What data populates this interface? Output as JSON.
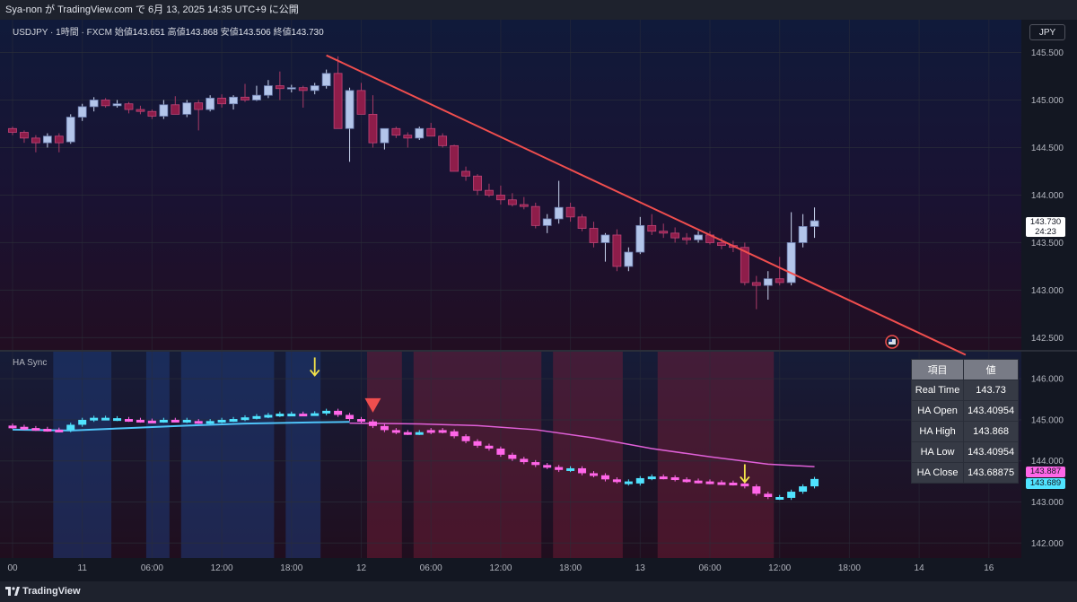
{
  "header": {
    "publisher_line": "Sya-non が TradingView.com で 6月 13, 2025 14:35 UTC+9 に公開"
  },
  "footer": {
    "brand": "TradingView"
  },
  "symbol": {
    "name": "USDJPY · 1時間 · FXCM",
    "open_label": "始値",
    "open": "143.651",
    "high_label": "高値",
    "high": "143.868",
    "low_label": "安値",
    "low": "143.506",
    "close_label": "終値",
    "close": "143.730"
  },
  "currency_button": "JPY",
  "last_price": {
    "price": "143.730",
    "countdown": "24:23"
  },
  "indicator": {
    "title": "HA Sync",
    "tag_upper": "143.887",
    "tag_lower": "143.689",
    "tag_upper_color": "#ff66e8",
    "tag_lower_color": "#50e3ff"
  },
  "table": {
    "headers": [
      "項目",
      "値"
    ],
    "rows": [
      [
        "Real Time",
        "143.73"
      ],
      [
        "HA Open",
        "143.40954"
      ],
      [
        "HA High",
        "143.868"
      ],
      [
        "HA Low",
        "143.40954"
      ],
      [
        "HA Close",
        "143.68875"
      ]
    ]
  },
  "colors": {
    "bull_body": "#b3c5ea",
    "bear_body": "#8e1d4a",
    "trendline": "#f04e4e",
    "ha_bull": "#50e3ff",
    "ha_bear": "#ff66e8",
    "ema_cyan": "#4fc3f7",
    "ema_pink": "#e060d8",
    "bg_blue": "#1f3a78",
    "bg_red": "#7a1f3a",
    "arrow_yellow": "#f3e34a",
    "marker_red": "#f04e4e"
  },
  "chart_data": [
    {
      "type": "candlestick",
      "title": "USDJPY · 1時間 · FXCM",
      "ylim": [
        142.4,
        145.75
      ],
      "y_ticks": [
        142.5,
        143.0,
        143.5,
        144.0,
        144.5,
        145.0,
        145.5
      ],
      "y_tick_labels": [
        "142.500",
        "143.000",
        "143.500",
        "144.000",
        "144.500",
        "145.000",
        "145.500"
      ],
      "x_tick_labels": [
        "00",
        "11",
        "06:00",
        "12:00",
        "18:00",
        "12",
        "06:00",
        "12:00",
        "18:00",
        "13",
        "06:00",
        "12:00",
        "18:00",
        "14",
        "16"
      ],
      "x_tick_index": [
        0,
        6,
        12,
        18,
        24,
        30,
        36,
        42,
        48,
        54,
        60,
        66,
        72,
        78,
        84
      ],
      "candles_ohlc": [
        [
          144.7,
          144.72,
          144.63,
          144.66
        ],
        [
          144.66,
          144.68,
          144.55,
          144.6
        ],
        [
          144.6,
          144.63,
          144.45,
          144.55
        ],
        [
          144.55,
          144.65,
          144.5,
          144.62
        ],
        [
          144.62,
          144.65,
          144.45,
          144.55
        ],
        [
          144.56,
          144.85,
          144.54,
          144.82
        ],
        [
          144.82,
          144.96,
          144.78,
          144.93
        ],
        [
          144.93,
          145.03,
          144.88,
          145.0
        ],
        [
          145.0,
          145.02,
          144.92,
          144.94
        ],
        [
          144.94,
          145.0,
          144.92,
          144.96
        ],
        [
          144.96,
          144.98,
          144.86,
          144.9
        ],
        [
          144.9,
          144.94,
          144.85,
          144.88
        ],
        [
          144.88,
          144.9,
          144.8,
          144.83
        ],
        [
          144.83,
          145.0,
          144.8,
          144.95
        ],
        [
          144.95,
          145.04,
          144.89,
          144.85
        ],
        [
          144.85,
          145.0,
          144.82,
          144.97
        ],
        [
          144.97,
          145.0,
          144.68,
          144.9
        ],
        [
          144.9,
          145.05,
          144.88,
          145.02
        ],
        [
          145.02,
          145.06,
          144.92,
          144.96
        ],
        [
          144.96,
          145.05,
          144.9,
          145.03
        ],
        [
          145.03,
          145.17,
          144.98,
          145.0
        ],
        [
          145.0,
          145.15,
          144.99,
          145.05
        ],
        [
          145.05,
          145.21,
          145.02,
          145.15
        ],
        [
          145.15,
          145.3,
          145.0,
          145.12
        ],
        [
          145.12,
          145.16,
          145.08,
          145.13
        ],
        [
          145.13,
          145.15,
          144.92,
          145.1
        ],
        [
          145.1,
          145.18,
          145.06,
          145.15
        ],
        [
          145.15,
          145.32,
          145.12,
          145.28
        ],
        [
          145.28,
          145.46,
          145.25,
          144.7
        ],
        [
          144.7,
          145.13,
          144.35,
          145.1
        ],
        [
          145.1,
          145.18,
          144.9,
          144.85
        ],
        [
          144.85,
          145.05,
          144.5,
          144.55
        ],
        [
          144.55,
          144.7,
          144.48,
          144.7
        ],
        [
          144.7,
          144.72,
          144.6,
          144.63
        ],
        [
          144.63,
          144.66,
          144.5,
          144.6
        ],
        [
          144.6,
          144.72,
          144.58,
          144.7
        ],
        [
          144.7,
          144.76,
          144.62,
          144.62
        ],
        [
          144.62,
          144.65,
          144.5,
          144.52
        ],
        [
          144.52,
          144.53,
          144.25,
          144.25
        ],
        [
          144.25,
          144.3,
          144.15,
          144.2
        ],
        [
          144.2,
          144.22,
          144.0,
          144.05
        ],
        [
          144.05,
          144.12,
          143.98,
          144.0
        ],
        [
          144.0,
          144.1,
          143.9,
          143.95
        ],
        [
          143.95,
          144.02,
          143.88,
          143.9
        ],
        [
          143.9,
          143.98,
          143.85,
          143.88
        ],
        [
          143.88,
          143.92,
          143.65,
          143.68
        ],
        [
          143.68,
          143.8,
          143.6,
          143.75
        ],
        [
          143.75,
          144.15,
          143.7,
          143.87
        ],
        [
          143.87,
          143.92,
          143.72,
          143.77
        ],
        [
          143.77,
          143.8,
          143.62,
          143.65
        ],
        [
          143.65,
          143.72,
          143.45,
          143.5
        ],
        [
          143.5,
          143.6,
          143.3,
          143.58
        ],
        [
          143.58,
          143.64,
          143.2,
          143.25
        ],
        [
          143.25,
          143.45,
          143.2,
          143.4
        ],
        [
          143.4,
          143.77,
          143.38,
          143.68
        ],
        [
          143.68,
          143.8,
          143.58,
          143.62
        ],
        [
          143.62,
          143.7,
          143.55,
          143.6
        ],
        [
          143.6,
          143.66,
          143.5,
          143.55
        ],
        [
          143.55,
          143.6,
          143.48,
          143.53
        ],
        [
          143.53,
          143.62,
          143.5,
          143.58
        ],
        [
          143.58,
          143.62,
          143.48,
          143.5
        ],
        [
          143.5,
          143.55,
          143.43,
          143.47
        ],
        [
          143.47,
          143.52,
          143.4,
          143.45
        ],
        [
          143.45,
          143.5,
          143.05,
          143.08
        ],
        [
          143.08,
          143.15,
          142.8,
          143.05
        ],
        [
          143.05,
          143.2,
          142.9,
          143.12
        ],
        [
          143.12,
          143.35,
          143.05,
          143.08
        ],
        [
          143.08,
          143.82,
          143.05,
          143.5
        ],
        [
          143.5,
          143.8,
          143.45,
          143.67
        ],
        [
          143.67,
          143.87,
          143.55,
          143.73
        ]
      ],
      "trendline": {
        "from": [
          27,
          145.47
        ],
        "to": [
          82,
          142.32
        ]
      }
    },
    {
      "type": "candlestick",
      "title": "HA Sync",
      "ylim": [
        141.7,
        146.55
      ],
      "y_ticks": [
        142.0,
        143.0,
        144.0,
        145.0,
        146.0
      ],
      "y_tick_labels": [
        "142.000",
        "143.000",
        "144.000",
        "145.000",
        "146.000"
      ],
      "ha_close": [
        144.83,
        144.8,
        144.78,
        144.76,
        144.75,
        144.88,
        145.0,
        145.05,
        145.04,
        145.02,
        145.0,
        144.98,
        144.98,
        145.0,
        145.0,
        144.97,
        144.95,
        144.97,
        145.0,
        145.02,
        145.06,
        145.09,
        145.12,
        145.15,
        145.15,
        145.15,
        145.16,
        145.22,
        145.12,
        145.02,
        144.96,
        144.85,
        144.75,
        144.7,
        144.68,
        144.7,
        144.75,
        144.72,
        144.6,
        144.48,
        144.37,
        144.3,
        144.15,
        144.05,
        143.97,
        143.9,
        143.85,
        143.78,
        143.82,
        143.7,
        143.65,
        143.55,
        143.5,
        143.45,
        143.58,
        143.62,
        143.6,
        143.55,
        143.52,
        143.5,
        143.48,
        143.47,
        143.45,
        143.38,
        143.2,
        143.12,
        143.1,
        143.25,
        143.38,
        143.56
      ],
      "bull_indices": [
        5,
        6,
        7,
        8,
        9,
        13,
        15,
        17,
        18,
        19,
        20,
        21,
        22,
        23,
        24,
        26,
        27,
        35,
        48,
        53,
        54,
        55,
        66,
        67,
        68,
        69
      ],
      "ema_cyan": [
        [
          0,
          144.76
        ],
        [
          5,
          144.74
        ],
        [
          10,
          144.8
        ],
        [
          15,
          144.86
        ],
        [
          20,
          144.91
        ],
        [
          26,
          144.94
        ],
        [
          29,
          144.95
        ]
      ],
      "ema_pink": [
        [
          29,
          144.92
        ],
        [
          35,
          144.9
        ],
        [
          40,
          144.86
        ],
        [
          45,
          144.76
        ],
        [
          50,
          144.56
        ],
        [
          55,
          144.3
        ],
        [
          60,
          144.1
        ],
        [
          65,
          143.92
        ],
        [
          69,
          143.86
        ]
      ],
      "bg_blue_ranges": [
        [
          4,
          8
        ],
        [
          12,
          13
        ],
        [
          15,
          22
        ],
        [
          24,
          26
        ]
      ],
      "bg_red_ranges": [
        [
          31,
          33
        ],
        [
          35,
          45
        ],
        [
          47,
          52
        ],
        [
          56,
          65
        ]
      ],
      "down_arrows": [
        [
          26,
          146.3
        ],
        [
          63,
          143.7
        ]
      ],
      "red_marker": [
        31,
        145.35
      ]
    }
  ]
}
